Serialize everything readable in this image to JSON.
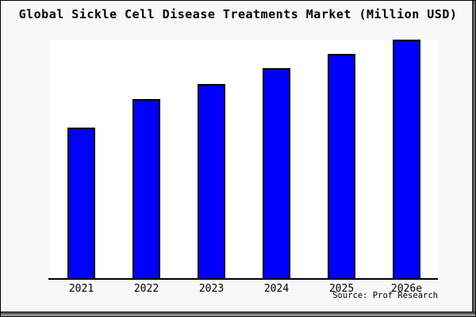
{
  "title": "Global Sickle Cell Disease Treatments Market (Million USD)",
  "source_credit": "Source: Prof Research",
  "colors": {
    "figure_bg": "#f8f8f8",
    "plot_bg": "#ffffff",
    "bar_fill": "#0000ff",
    "bar_border": "#000000",
    "axis_line": "#000000",
    "text": "#000000"
  },
  "chart_data": {
    "type": "bar",
    "title": "Global Sickle Cell Disease Treatments Market (Million USD)",
    "categories": [
      "2021",
      "2022",
      "2023",
      "2024",
      "2025",
      "2026e"
    ],
    "values": [
      63,
      75,
      81.5,
      88,
      94,
      100
    ],
    "value_note": "y-axis has no tick labels; values estimated from bar heights as percent of tallest bar (2026e = 100)",
    "unit": "Million USD",
    "xlabel": "",
    "ylabel": "",
    "ylim": [
      0,
      100
    ],
    "grid": false,
    "legend": false,
    "source": "Source: Prof Research"
  }
}
